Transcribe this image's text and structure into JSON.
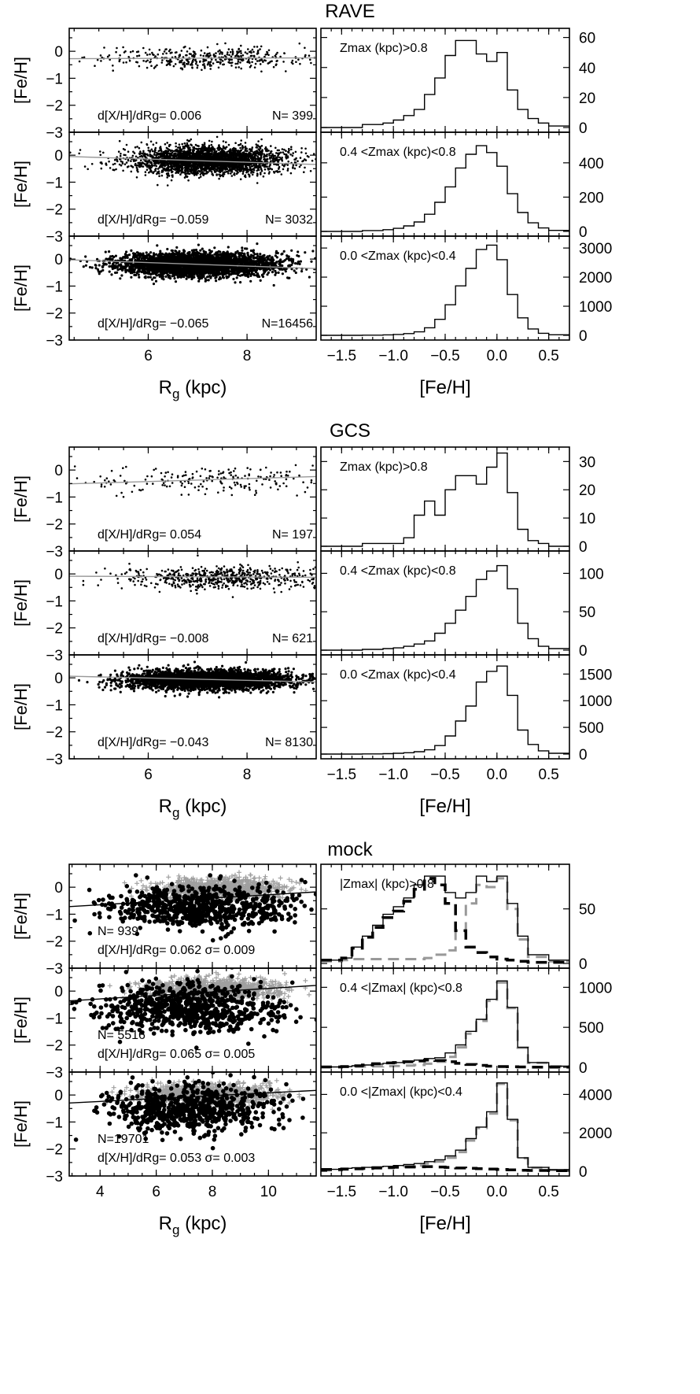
{
  "figure": {
    "x_tick_labels_scatter_top": [
      "6",
      "8"
    ],
    "x_tick_labels_scatter_mock": [
      "4",
      "6",
      "8",
      "10"
    ],
    "x_tick_labels_hist": [
      "−1.5",
      "−1.0",
      "−0.5",
      "0.0",
      "0.5"
    ],
    "y_tick_labels_scatter": [
      "0",
      "−1",
      "−2",
      "−3"
    ]
  },
  "chart_data": [
    {
      "group": "RAVE",
      "title": "RAVE",
      "scatter_xlim": [
        4.4,
        9.4
      ],
      "xlabel_scatter": "Rg (kpc)",
      "xlabel_hist": "[Fe/H]",
      "ylabel": "[Fe/H]",
      "panels": [
        {
          "type": "scatter",
          "gradient_label": "d[X/H]/dRg= 0.006",
          "n_label": "N= 399",
          "fit": {
            "slope": 0.006,
            "intercept": -0.3
          },
          "cloud": {
            "n": 399,
            "x_center": 7.2,
            "x_sigma": 1.1,
            "y_center": -0.25,
            "y_sigma": 0.2
          },
          "hist_label": "Zmax (kpc)>0.8",
          "hist_yticks": [
            0,
            20,
            40,
            60
          ],
          "hist_ymax": 64,
          "hist_edges": [
            -1.7,
            -1.3,
            -1.1,
            -1.0,
            -0.9,
            -0.8,
            -0.7,
            -0.6,
            -0.5,
            -0.4,
            -0.3,
            -0.2,
            -0.1,
            0.0,
            0.1,
            0.2,
            0.3,
            0.4,
            0.5,
            0.7
          ],
          "hist_counts": [
            0,
            2,
            3,
            5,
            8,
            12,
            22,
            33,
            48,
            58,
            58,
            49,
            44,
            50,
            25,
            12,
            6,
            3,
            1
          ]
        },
        {
          "type": "scatter",
          "gradient_label": "d[X/H]/dRg= −0.059",
          "n_label": "N= 3032",
          "fit": {
            "slope": -0.059,
            "intercept": 0.21
          },
          "cloud": {
            "n": 3032,
            "x_center": 7.2,
            "x_sigma": 0.75,
            "y_center": -0.2,
            "y_sigma": 0.25
          },
          "hist_label": "0.4 <Zmax (kpc)<0.8",
          "hist_yticks": [
            0,
            200,
            400
          ],
          "hist_ymax": 560,
          "hist_edges": [
            -1.7,
            -1.3,
            -1.1,
            -1.0,
            -0.9,
            -0.8,
            -0.7,
            -0.6,
            -0.5,
            -0.4,
            -0.3,
            -0.2,
            -0.1,
            0.0,
            0.1,
            0.2,
            0.3,
            0.4,
            0.5,
            0.7
          ],
          "hist_counts": [
            0,
            5,
            10,
            18,
            32,
            55,
            100,
            170,
            260,
            370,
            450,
            500,
            460,
            380,
            220,
            110,
            50,
            20,
            6
          ]
        },
        {
          "type": "scatter",
          "gradient_label": "d[X/H]/dRg= −0.065",
          "n_label": "N=16456",
          "fit": {
            "slope": -0.065,
            "intercept": 0.26
          },
          "cloud": {
            "n": 16456,
            "x_center": 7.0,
            "x_sigma": 0.8,
            "y_center": -0.2,
            "y_sigma": 0.22
          },
          "hist_label": "0.0 <Zmax (kpc)<0.4",
          "hist_yticks": [
            0,
            1000,
            2000,
            3000
          ],
          "hist_ymax": 3300,
          "hist_edges": [
            -1.7,
            -1.3,
            -1.1,
            -1.0,
            -0.9,
            -0.8,
            -0.7,
            -0.6,
            -0.5,
            -0.4,
            -0.3,
            -0.2,
            -0.1,
            0.0,
            0.1,
            0.2,
            0.3,
            0.4,
            0.5,
            0.7
          ],
          "hist_counts": [
            0,
            5,
            15,
            30,
            60,
            120,
            260,
            550,
            1050,
            1700,
            2300,
            2950,
            3100,
            2600,
            1400,
            600,
            220,
            70,
            20
          ]
        }
      ]
    },
    {
      "group": "GCS",
      "title": "GCS",
      "scatter_xlim": [
        4.4,
        9.4
      ],
      "xlabel_scatter": "Rg (kpc)",
      "xlabel_hist": "[Fe/H]",
      "ylabel": "[Fe/H]",
      "panels": [
        {
          "type": "scatter",
          "gradient_label": "d[X/H]/dRg= 0.054",
          "n_label": "N= 197",
          "fit": {
            "slope": 0.054,
            "intercept": -0.75
          },
          "cloud": {
            "n": 197,
            "x_center": 7.2,
            "x_sigma": 1.2,
            "y_center": -0.35,
            "y_sigma": 0.25
          },
          "hist_label": "Zmax (kpc)>0.8",
          "hist_yticks": [
            0,
            10,
            20,
            30
          ],
          "hist_ymax": 34,
          "hist_edges": [
            -1.7,
            -1.3,
            -1.1,
            -1.0,
            -0.9,
            -0.8,
            -0.7,
            -0.6,
            -0.5,
            -0.4,
            -0.3,
            -0.2,
            -0.1,
            0.0,
            0.1,
            0.2,
            0.3,
            0.4,
            0.5,
            0.7
          ],
          "hist_counts": [
            0,
            1,
            1,
            1,
            3,
            11,
            16,
            11,
            20,
            25,
            25,
            22,
            28,
            33,
            19,
            6,
            2,
            1,
            0
          ]
        },
        {
          "type": "scatter",
          "gradient_label": "d[X/H]/dRg= −0.008",
          "n_label": "N= 621",
          "fit": {
            "slope": -0.008,
            "intercept": -0.05
          },
          "cloud": {
            "n": 621,
            "x_center": 7.5,
            "x_sigma": 1.0,
            "y_center": -0.15,
            "y_sigma": 0.2
          },
          "hist_label": "0.4 <Zmax (kpc)<0.8",
          "hist_yticks": [
            0,
            50,
            100
          ],
          "hist_ymax": 125,
          "hist_edges": [
            -1.7,
            -1.3,
            -1.1,
            -1.0,
            -0.9,
            -0.8,
            -0.7,
            -0.6,
            -0.5,
            -0.4,
            -0.3,
            -0.2,
            -0.1,
            0.0,
            0.1,
            0.2,
            0.3,
            0.4,
            0.5,
            0.7
          ],
          "hist_counts": [
            0,
            1,
            2,
            3,
            5,
            8,
            12,
            22,
            35,
            52,
            70,
            92,
            103,
            110,
            80,
            35,
            15,
            5,
            2
          ]
        },
        {
          "type": "scatter",
          "gradient_label": "d[X/H]/dRg= −0.043",
          "n_label": "N= 8130",
          "fit": {
            "slope": -0.043,
            "intercept": 0.25
          },
          "cloud": {
            "n": 8130,
            "x_center": 7.2,
            "x_sigma": 0.8,
            "y_center": -0.08,
            "y_sigma": 0.18
          },
          "hist_label": "0.0 <Zmax (kpc)<0.4",
          "hist_yticks": [
            0,
            500,
            1000,
            1500
          ],
          "hist_ymax": 1800,
          "hist_edges": [
            -1.7,
            -1.3,
            -1.1,
            -1.0,
            -0.9,
            -0.8,
            -0.7,
            -0.6,
            -0.5,
            -0.4,
            -0.3,
            -0.2,
            -0.1,
            0.0,
            0.1,
            0.2,
            0.3,
            0.4,
            0.5,
            0.7
          ],
          "hist_counts": [
            0,
            3,
            8,
            15,
            25,
            45,
            80,
            160,
            340,
            620,
            900,
            1350,
            1550,
            1650,
            1100,
            450,
            180,
            60,
            15
          ]
        }
      ]
    },
    {
      "group": "mock",
      "title": "mock",
      "scatter_xlim": [
        2.9,
        11.7
      ],
      "xlabel_scatter": "Rg (kpc)",
      "xlabel_hist": "[Fe/H]",
      "ylabel": "[Fe/H]",
      "panels": [
        {
          "type": "scatter",
          "gradient_label": "d[X/H]/dRg= 0.062 σ= 0.009",
          "n_label": "N= 939",
          "fit": {
            "slope": 0.062,
            "intercept": -0.9
          },
          "cloud": {
            "n": 939,
            "x_center": 7.6,
            "x_sigma": 1.8,
            "y_center": -0.7,
            "y_sigma": 0.4
          },
          "gray_cloud": {
            "x_center": 8.3,
            "x_sigma": 1.1,
            "y_center": -0.05,
            "y_sigma": 0.18
          },
          "hist_label": "|Zmax| (kpc)>0.8",
          "hist_yticks": [
            0,
            50
          ],
          "hist_ymax": 88,
          "hist_edges": [
            -1.7,
            -1.5,
            -1.4,
            -1.3,
            -1.2,
            -1.1,
            -1.0,
            -0.9,
            -0.8,
            -0.7,
            -0.6,
            -0.5,
            -0.4,
            -0.3,
            -0.2,
            -0.1,
            0.0,
            0.1,
            0.2,
            0.3,
            0.5,
            0.7
          ],
          "hist_counts": [
            3,
            5,
            15,
            25,
            35,
            45,
            52,
            60,
            72,
            80,
            80,
            65,
            60,
            65,
            80,
            75,
            80,
            55,
            25,
            8,
            3
          ],
          "hist_counts_gray": [
            2,
            3,
            4,
            4,
            4,
            4,
            4,
            4,
            4,
            5,
            8,
            12,
            30,
            55,
            72,
            70,
            78,
            50,
            22,
            6,
            2
          ],
          "hist_counts_dashed": [
            3,
            5,
            14,
            24,
            33,
            42,
            48,
            57,
            68,
            78,
            72,
            55,
            30,
            15,
            10,
            6,
            4,
            3,
            2,
            1,
            1
          ]
        },
        {
          "type": "scatter",
          "gradient_label": "d[X/H]/dRg= 0.065 σ= 0.005",
          "n_label": "N= 5516",
          "fit": {
            "slope": 0.065,
            "intercept": -0.55
          },
          "cloud": {
            "n": 5516,
            "x_center": 7.2,
            "x_sigma": 1.7,
            "y_center": -0.6,
            "y_sigma": 0.45
          },
          "gray_cloud": {
            "x_center": 8.0,
            "x_sigma": 1.2,
            "y_center": 0.1,
            "y_sigma": 0.18
          },
          "hist_label": "0.4 <|Zmax| (kpc)<0.8",
          "hist_yticks": [
            0,
            500,
            1000
          ],
          "hist_ymax": 1200,
          "hist_edges": [
            -1.7,
            -1.5,
            -1.4,
            -1.3,
            -1.2,
            -1.1,
            -1.0,
            -0.9,
            -0.8,
            -0.7,
            -0.6,
            -0.5,
            -0.4,
            -0.3,
            -0.2,
            -0.1,
            0.0,
            0.1,
            0.2,
            0.3,
            0.5,
            0.7
          ],
          "hist_counts": [
            5,
            10,
            20,
            30,
            40,
            50,
            60,
            75,
            90,
            110,
            120,
            180,
            280,
            450,
            600,
            850,
            1080,
            750,
            250,
            60,
            15
          ],
          "hist_counts_gray": [
            3,
            5,
            8,
            10,
            12,
            15,
            18,
            22,
            30,
            45,
            70,
            130,
            250,
            420,
            580,
            830,
            1060,
            740,
            245,
            55,
            12
          ],
          "hist_counts_dashed": [
            5,
            10,
            20,
            30,
            45,
            55,
            60,
            70,
            80,
            90,
            85,
            70,
            50,
            35,
            25,
            15,
            10,
            8,
            5,
            3,
            2
          ]
        },
        {
          "type": "scatter",
          "gradient_label": "d[X/H]/dRg= 0.053 σ= 0.003",
          "n_label": "N=19701",
          "fit": {
            "slope": 0.053,
            "intercept": -0.45
          },
          "cloud": {
            "n": 19701,
            "x_center": 7.2,
            "x_sigma": 1.5,
            "y_center": -0.5,
            "y_sigma": 0.45
          },
          "gray_cloud": {
            "x_center": 7.8,
            "x_sigma": 1.2,
            "y_center": 0.05,
            "y_sigma": 0.18
          },
          "hist_label": "0.0 <|Zmax| (kpc)<0.4",
          "hist_yticks": [
            0,
            2000,
            4000
          ],
          "hist_ymax": 5000,
          "hist_edges": [
            -1.7,
            -1.5,
            -1.4,
            -1.3,
            -1.2,
            -1.1,
            -1.0,
            -0.9,
            -0.8,
            -0.7,
            -0.6,
            -0.5,
            -0.4,
            -0.3,
            -0.2,
            -0.1,
            0.0,
            0.1,
            0.2,
            0.3,
            0.5,
            0.7
          ],
          "hist_counts": [
            100,
            150,
            180,
            200,
            230,
            260,
            300,
            350,
            400,
            500,
            600,
            800,
            1100,
            1700,
            2300,
            3100,
            4600,
            2700,
            700,
            200,
            80
          ],
          "hist_counts_gray": [
            50,
            80,
            100,
            120,
            140,
            160,
            200,
            240,
            300,
            400,
            500,
            700,
            1000,
            1600,
            2250,
            3000,
            4550,
            2650,
            680,
            180,
            60
          ],
          "hist_counts_dashed": [
            90,
            120,
            140,
            160,
            180,
            200,
            210,
            220,
            230,
            240,
            220,
            200,
            170,
            150,
            130,
            110,
            90,
            70,
            50,
            40,
            30
          ]
        }
      ]
    }
  ]
}
